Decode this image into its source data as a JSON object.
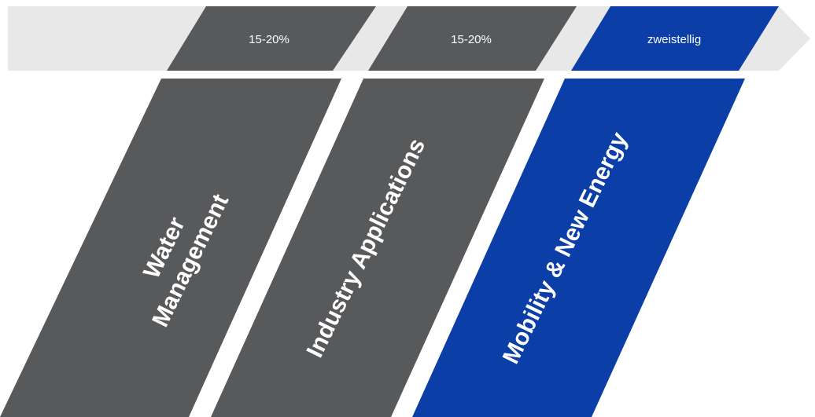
{
  "colors": {
    "arrow": "#e8e8e8",
    "segment_gray": "#58595b",
    "segment_blue": "#0b3ea7",
    "text": "#ffffff"
  },
  "growth_rates": {
    "water": "15-20%",
    "industry": "15-20%",
    "mobility": "zweistellig"
  },
  "segments": {
    "water_line1": "Water",
    "water_line2": "Management",
    "industry": "Industry Applications",
    "mobility": "Mobility & New Energy"
  }
}
